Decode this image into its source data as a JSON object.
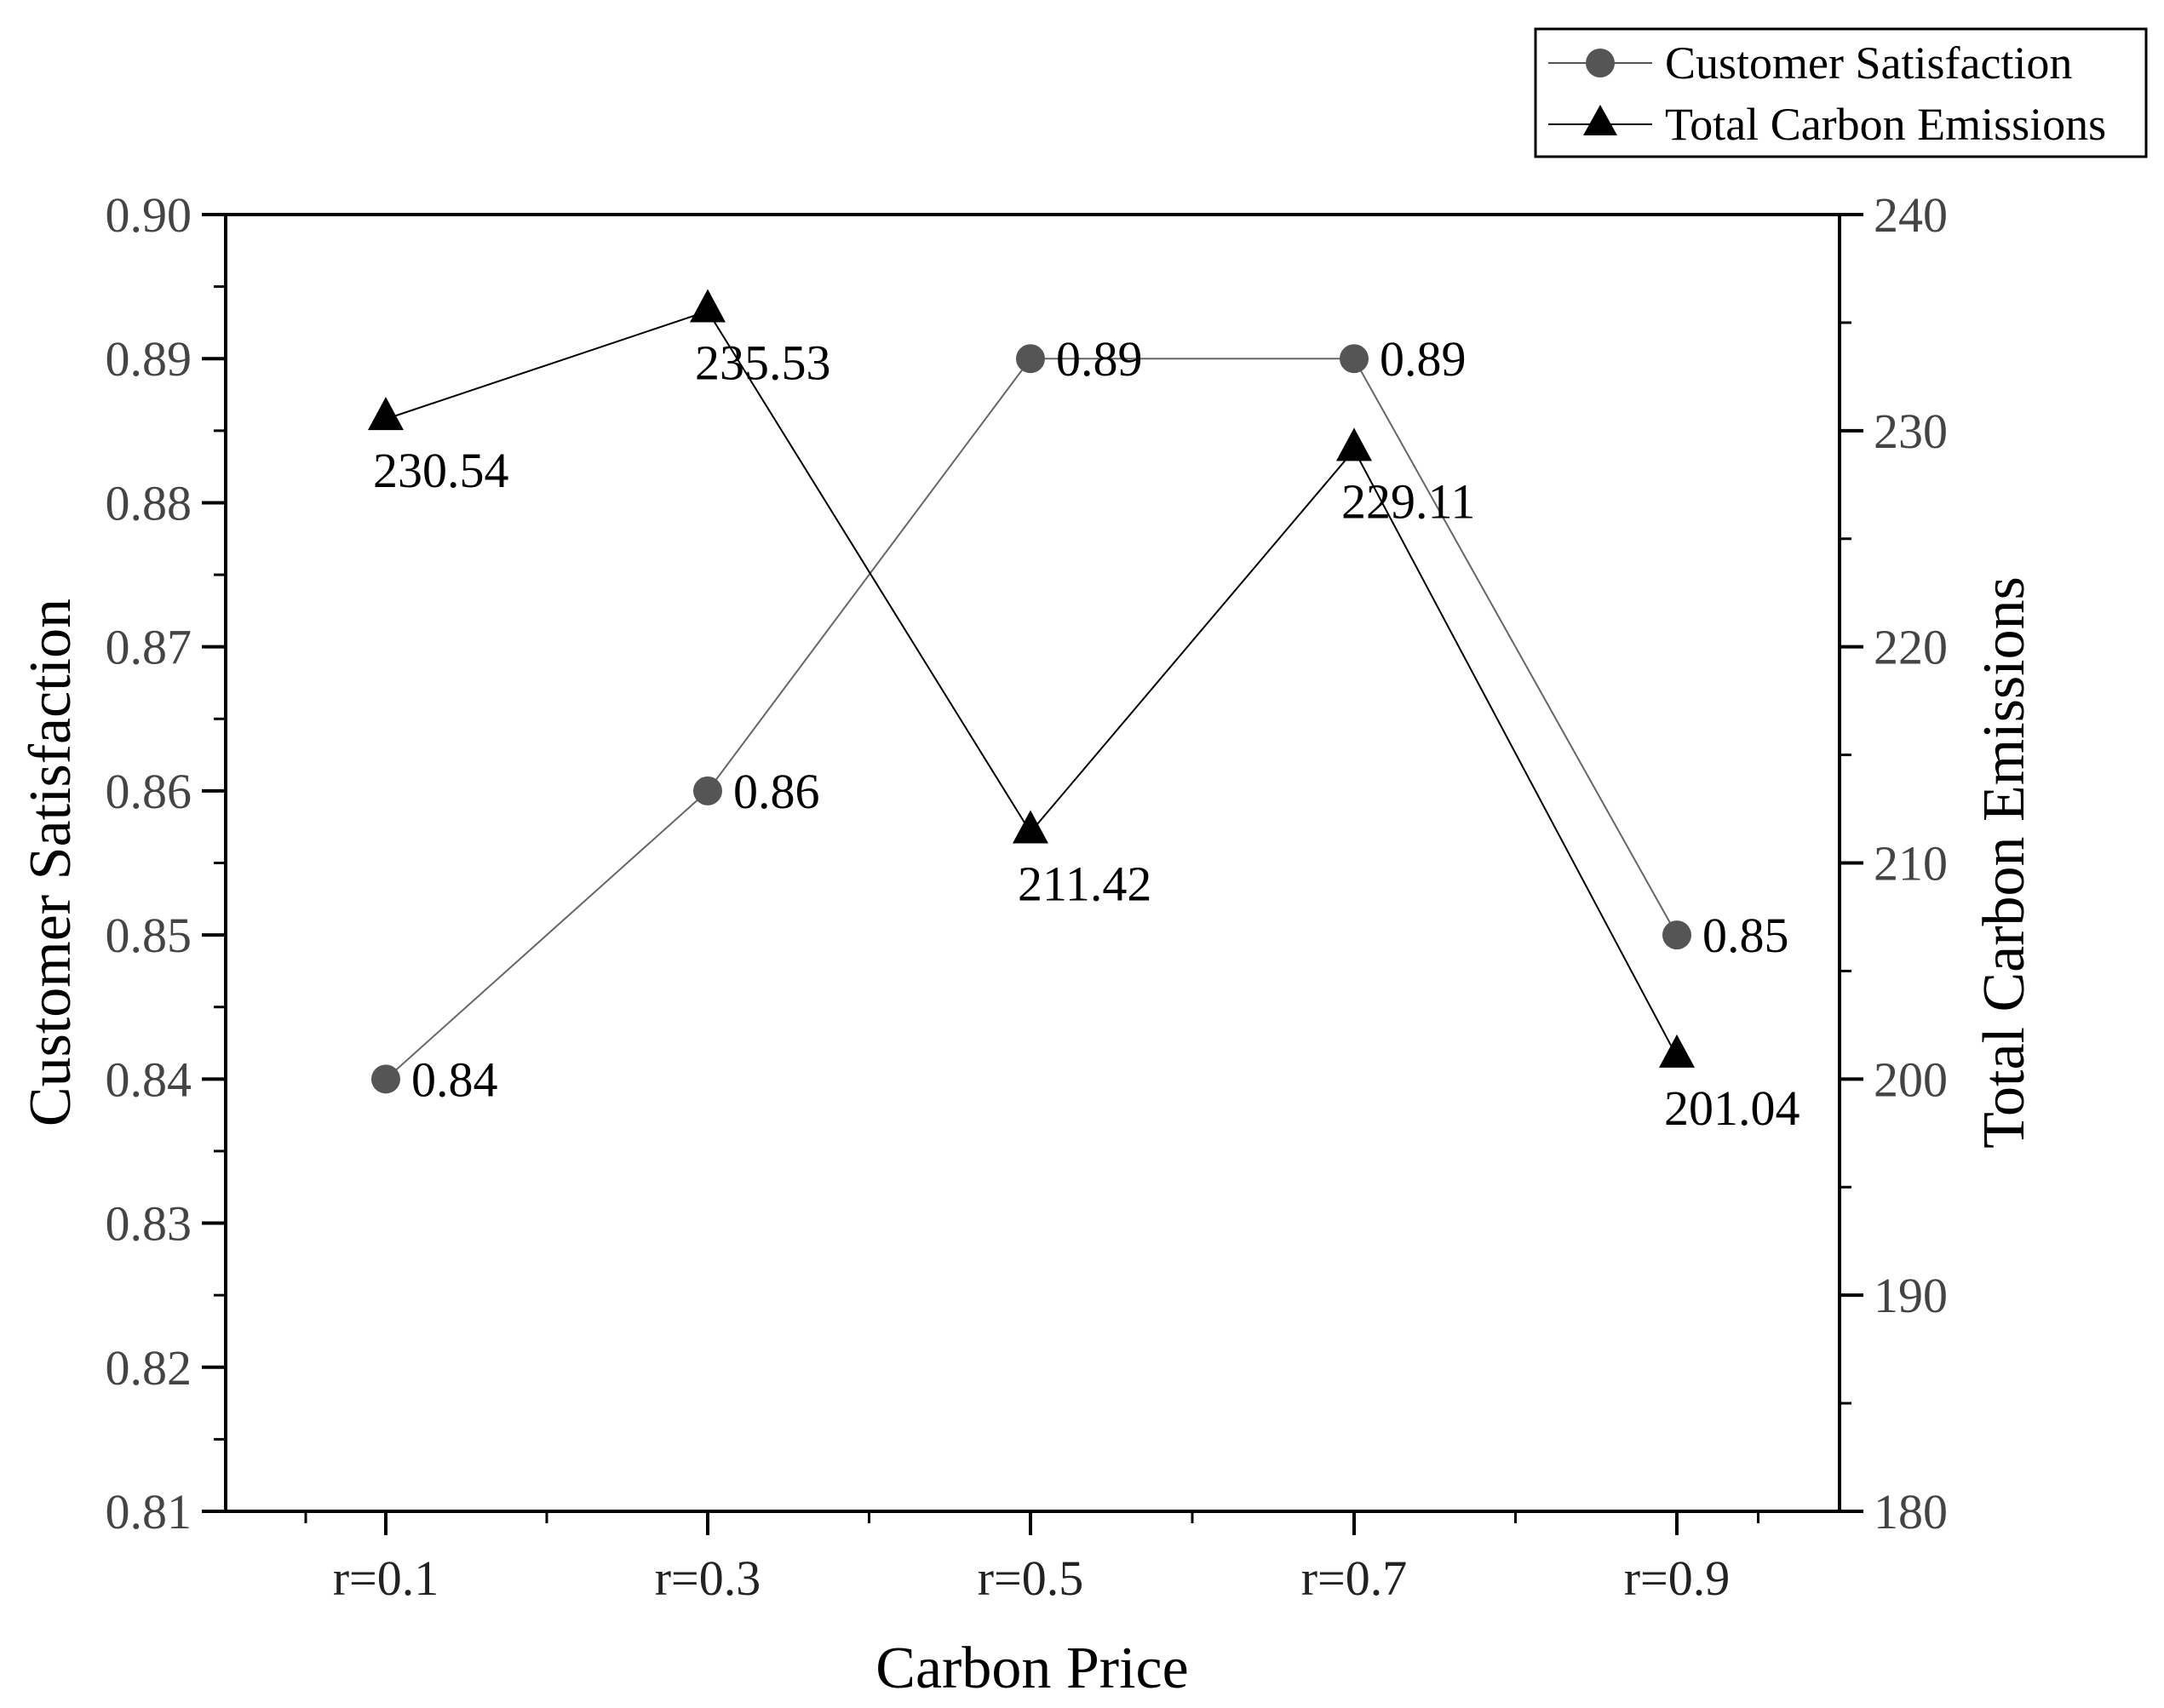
{
  "chart_data": {
    "type": "line",
    "categories": [
      "r=0.1",
      "r=0.3",
      "r=0.5",
      "r=0.7",
      "r=0.9"
    ],
    "xlabel": "Carbon Price",
    "ylabel_left": "Customer Satisfaction",
    "ylabel_right": "Total Carbon Emissions",
    "ylim_left": [
      0.81,
      0.9
    ],
    "ylim_right": [
      180,
      240
    ],
    "yticks_left": [
      "0.90",
      "0.89",
      "0.88",
      "0.87",
      "0.86",
      "0.85",
      "0.84",
      "0.83",
      "0.82",
      "0.81"
    ],
    "yticks_right": [
      "240",
      "230",
      "220",
      "210",
      "200",
      "190",
      "180"
    ],
    "grid": false,
    "legend_position": "top-right",
    "series": [
      {
        "name": "Customer Satisfaction",
        "axis": "left",
        "marker": "circle",
        "color": "#555555",
        "values": [
          0.84,
          0.86,
          0.89,
          0.89,
          0.85
        ],
        "labels": [
          "0.84",
          "0.86",
          "0.89",
          "0.89",
          "0.85"
        ]
      },
      {
        "name": "Total Carbon Emissions",
        "axis": "right",
        "marker": "triangle",
        "color": "#000000",
        "values": [
          230.54,
          235.53,
          211.42,
          229.11,
          201.04
        ],
        "labels": [
          "230.54",
          "235.53",
          "211.42",
          "229.11",
          "201.04"
        ]
      }
    ]
  }
}
